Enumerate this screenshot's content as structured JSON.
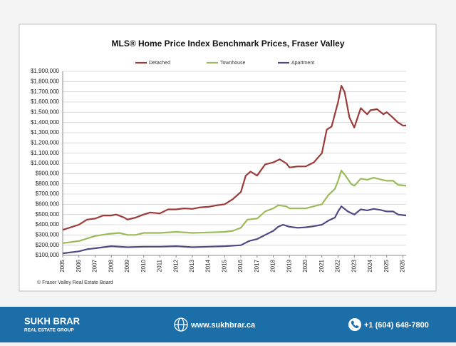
{
  "chart_data": {
    "type": "line",
    "title": "MLS® Home Price Index Benchmark Prices, Fraser Valley",
    "source": "© Fraser Valley Real Estate Board",
    "xlim": [
      2005,
      2026.2
    ],
    "xticks": [
      2005,
      2006,
      2007,
      2008,
      2009,
      2010,
      2011,
      2012,
      2013,
      2014,
      2015,
      2016,
      2017,
      2018,
      2019,
      2020,
      2021,
      2022,
      2023,
      2024,
      2025,
      2026
    ],
    "ylim": [
      100000,
      1900000
    ],
    "yticks": [
      {
        "value": 100000,
        "label": "$100,000"
      },
      {
        "value": 200000,
        "label": "$200,000"
      },
      {
        "value": 300000,
        "label": "$300,000"
      },
      {
        "value": 400000,
        "label": "$400,000"
      },
      {
        "value": 500000,
        "label": "$500,000"
      },
      {
        "value": 600000,
        "label": "$600,000"
      },
      {
        "value": 700000,
        "label": "$700,000"
      },
      {
        "value": 800000,
        "label": "$800,000"
      },
      {
        "value": 900000,
        "label": "$900,000"
      },
      {
        "value": 1000000,
        "label": "$1,000,000"
      },
      {
        "value": 1100000,
        "label": "$1,100,000"
      },
      {
        "value": 1200000,
        "label": "$1,200,000"
      },
      {
        "value": 1300000,
        "label": "$1,300,000"
      },
      {
        "value": 1400000,
        "label": "$1,400,000"
      },
      {
        "value": 1500000,
        "label": "$1,500,000"
      },
      {
        "value": 1600000,
        "label": "$1,600,000"
      },
      {
        "value": 1700000,
        "label": "$1,700,000"
      },
      {
        "value": 1800000,
        "label": "$1,800,000"
      },
      {
        "value": 1900000,
        "label": "$1,900,000"
      }
    ],
    "grid": true,
    "legend": "top",
    "series": [
      {
        "name": "Detached",
        "color": "#9b3a37",
        "x": [
          2005,
          2006,
          2006.5,
          2007,
          2007.5,
          2008,
          2008.3,
          2008.8,
          2009,
          2009.5,
          2010,
          2010.4,
          2011,
          2011.5,
          2012,
          2012.5,
          2013,
          2013.5,
          2014,
          2014.5,
          2015,
          2015.5,
          2016,
          2016.3,
          2016.6,
          2017,
          2017.5,
          2018,
          2018.4,
          2018.8,
          2019,
          2019.5,
          2020,
          2020.5,
          2021,
          2021.3,
          2021.6,
          2022,
          2022.2,
          2022.4,
          2022.7,
          2023,
          2023.4,
          2023.8,
          2024,
          2024.4,
          2024.8,
          2025,
          2025.3,
          2025.7,
          2026,
          2026.2
        ],
        "values": [
          350000,
          400000,
          450000,
          460000,
          490000,
          490000,
          500000,
          470000,
          450000,
          470000,
          500000,
          520000,
          510000,
          550000,
          550000,
          560000,
          555000,
          570000,
          575000,
          590000,
          600000,
          650000,
          720000,
          880000,
          920000,
          880000,
          990000,
          1010000,
          1040000,
          1000000,
          960000,
          970000,
          970000,
          1010000,
          1100000,
          1330000,
          1360000,
          1600000,
          1760000,
          1700000,
          1450000,
          1350000,
          1540000,
          1480000,
          1520000,
          1530000,
          1480000,
          1500000,
          1460000,
          1400000,
          1370000,
          1370000
        ]
      },
      {
        "name": "Townhouse",
        "color": "#9bbb59",
        "x": [
          2005,
          2006,
          2007,
          2007.8,
          2008.5,
          2009,
          2009.5,
          2010,
          2011,
          2012,
          2013,
          2014,
          2015,
          2015.5,
          2016,
          2016.4,
          2017,
          2017.5,
          2018,
          2018.3,
          2018.8,
          2019,
          2019.5,
          2020,
          2020.5,
          2021,
          2021.4,
          2021.8,
          2022,
          2022.2,
          2022.5,
          2022.8,
          2023,
          2023.4,
          2023.8,
          2024.2,
          2024.7,
          2025,
          2025.4,
          2025.7,
          2026.2
        ],
        "values": [
          220000,
          240000,
          290000,
          310000,
          320000,
          300000,
          300000,
          320000,
          320000,
          330000,
          320000,
          325000,
          330000,
          340000,
          370000,
          450000,
          460000,
          530000,
          560000,
          590000,
          580000,
          560000,
          560000,
          560000,
          580000,
          600000,
          690000,
          750000,
          830000,
          930000,
          870000,
          800000,
          780000,
          850000,
          840000,
          860000,
          840000,
          830000,
          830000,
          790000,
          780000
        ]
      },
      {
        "name": "Apartment",
        "color": "#4f4a82",
        "x": [
          2005,
          2006,
          2006.5,
          2007,
          2008,
          2009,
          2010,
          2011,
          2012,
          2013,
          2014,
          2015,
          2016,
          2016.5,
          2017,
          2017.5,
          2018,
          2018.3,
          2018.6,
          2019,
          2019.5,
          2020,
          2020.5,
          2021,
          2021.4,
          2021.8,
          2022,
          2022.2,
          2022.6,
          2023,
          2023.4,
          2023.8,
          2024.2,
          2024.6,
          2025,
          2025.4,
          2025.7,
          2026.2
        ],
        "values": [
          120000,
          140000,
          160000,
          170000,
          190000,
          180000,
          185000,
          185000,
          190000,
          180000,
          185000,
          190000,
          200000,
          240000,
          260000,
          300000,
          340000,
          380000,
          400000,
          380000,
          370000,
          375000,
          385000,
          400000,
          440000,
          470000,
          530000,
          580000,
          530000,
          500000,
          550000,
          540000,
          555000,
          545000,
          530000,
          530000,
          500000,
          490000
        ]
      }
    ]
  },
  "footer": {
    "brand": "SUKH BRAR",
    "tagline": "REAL ESTATE GROUP",
    "website": "www.sukhbrar.ca",
    "phone": "+1 (604) 648-7800"
  }
}
